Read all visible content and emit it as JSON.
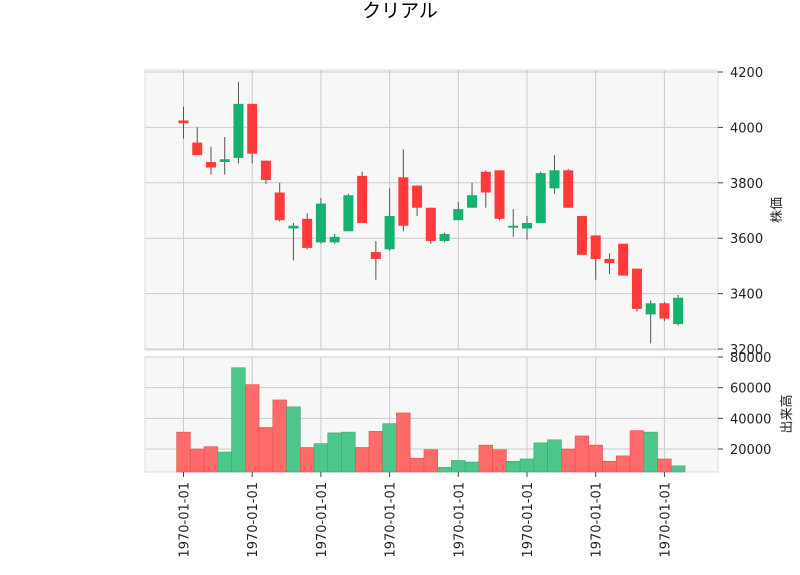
{
  "chart_data": {
    "type": "candlestick",
    "title": "クリアル",
    "ylabel": "株価",
    "volume_label": "出来高",
    "price_ylim": [
      3200,
      4200
    ],
    "price_ticks": [
      "3200",
      "3400",
      "3600",
      "3800",
      "4000",
      "4200"
    ],
    "volume_ylim": [
      5000,
      80000
    ],
    "volume_ticks": [
      "20000",
      "40000",
      "60000",
      "80000"
    ],
    "x_tick_labels": [
      "1970-01-01",
      "1970-01-01",
      "1970-01-01",
      "1970-01-01",
      "1970-01-01",
      "1970-01-01",
      "1970-01-01",
      "1970-01-01"
    ],
    "grid": true,
    "colors": {
      "up": "#14b16f",
      "down": "#ff3a3a",
      "up_volume": "#4cc68a",
      "down_volume": "#ff6b6b",
      "wick": "#555555"
    },
    "candles": [
      {
        "o": 4025,
        "h": 4075,
        "l": 3960,
        "c": 4015,
        "v": 31000
      },
      {
        "o": 3945,
        "h": 4000,
        "l": 3900,
        "c": 3900,
        "v": 20000
      },
      {
        "o": 3875,
        "h": 3930,
        "l": 3830,
        "c": 3855,
        "v": 21500
      },
      {
        "o": 3875,
        "h": 3965,
        "l": 3830,
        "c": 3885,
        "v": 18000
      },
      {
        "o": 3890,
        "h": 4165,
        "l": 3870,
        "c": 4085,
        "v": 73000
      },
      {
        "o": 4085,
        "h": 4085,
        "l": 3870,
        "c": 3905,
        "v": 62000
      },
      {
        "o": 3880,
        "h": 3880,
        "l": 3795,
        "c": 3810,
        "v": 34000
      },
      {
        "o": 3765,
        "h": 3800,
        "l": 3660,
        "c": 3665,
        "v": 52000
      },
      {
        "o": 3635,
        "h": 3655,
        "l": 3520,
        "c": 3645,
        "v": 47500
      },
      {
        "o": 3670,
        "h": 3690,
        "l": 3560,
        "c": 3565,
        "v": 21000
      },
      {
        "o": 3585,
        "h": 3745,
        "l": 3580,
        "c": 3725,
        "v": 23500
      },
      {
        "o": 3585,
        "h": 3615,
        "l": 3580,
        "c": 3605,
        "v": 30500
      },
      {
        "o": 3625,
        "h": 3760,
        "l": 3625,
        "c": 3755,
        "v": 31000
      },
      {
        "o": 3825,
        "h": 3840,
        "l": 3655,
        "c": 3655,
        "v": 21000
      },
      {
        "o": 3550,
        "h": 3590,
        "l": 3450,
        "c": 3525,
        "v": 31500
      },
      {
        "o": 3560,
        "h": 3780,
        "l": 3555,
        "c": 3680,
        "v": 36500
      },
      {
        "o": 3820,
        "h": 3920,
        "l": 3625,
        "c": 3645,
        "v": 43500
      },
      {
        "o": 3790,
        "h": 3790,
        "l": 3680,
        "c": 3710,
        "v": 14000
      },
      {
        "o": 3710,
        "h": 3710,
        "l": 3580,
        "c": 3590,
        "v": 19500
      },
      {
        "o": 3590,
        "h": 3620,
        "l": 3585,
        "c": 3615,
        "v": 8000
      },
      {
        "o": 3665,
        "h": 3730,
        "l": 3665,
        "c": 3705,
        "v": 12500
      },
      {
        "o": 3710,
        "h": 3800,
        "l": 3710,
        "c": 3755,
        "v": 11500
      },
      {
        "o": 3840,
        "h": 3845,
        "l": 3710,
        "c": 3765,
        "v": 22500
      },
      {
        "o": 3845,
        "h": 3845,
        "l": 3665,
        "c": 3670,
        "v": 19500
      },
      {
        "o": 3640,
        "h": 3705,
        "l": 3605,
        "c": 3645,
        "v": 12000
      },
      {
        "o": 3635,
        "h": 3680,
        "l": 3595,
        "c": 3655,
        "v": 13500
      },
      {
        "o": 3655,
        "h": 3840,
        "l": 3655,
        "c": 3835,
        "v": 24000
      },
      {
        "o": 3780,
        "h": 3900,
        "l": 3760,
        "c": 3845,
        "v": 26000
      },
      {
        "o": 3845,
        "h": 3850,
        "l": 3710,
        "c": 3710,
        "v": 20000
      },
      {
        "o": 3680,
        "h": 3680,
        "l": 3540,
        "c": 3540,
        "v": 28500
      },
      {
        "o": 3610,
        "h": 3610,
        "l": 3450,
        "c": 3525,
        "v": 22500
      },
      {
        "o": 3525,
        "h": 3545,
        "l": 3470,
        "c": 3510,
        "v": 12000
      },
      {
        "o": 3580,
        "h": 3580,
        "l": 3465,
        "c": 3465,
        "v": 15500
      },
      {
        "o": 3490,
        "h": 3490,
        "l": 3335,
        "c": 3345,
        "v": 32000
      },
      {
        "o": 3325,
        "h": 3375,
        "l": 3220,
        "c": 3365,
        "v": 31000
      },
      {
        "o": 3365,
        "h": 3370,
        "l": 3300,
        "c": 3310,
        "v": 13500
      },
      {
        "o": 3290,
        "h": 3395,
        "l": 3285,
        "c": 3385,
        "v": 9000
      }
    ]
  }
}
